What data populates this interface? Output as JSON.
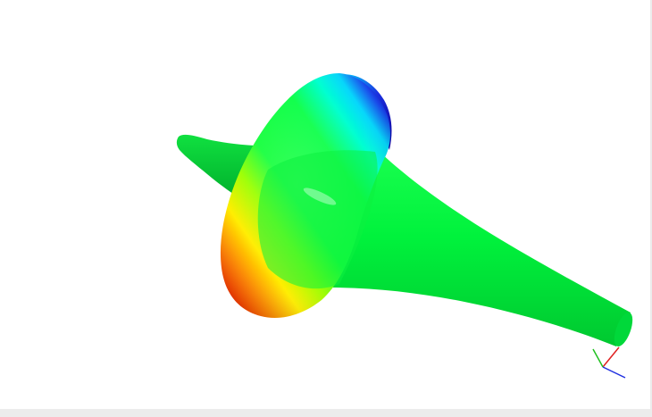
{
  "viewer": {
    "background": "#ffffff",
    "frame_color": "#ececec"
  },
  "model": {
    "shape": "flared-horn-surface",
    "colormap": [
      "#ff0000",
      "#ffff00",
      "#00ff3c",
      "#00ffff",
      "#0000c8"
    ],
    "dominant_color": "#00ec3c"
  },
  "axes_triad": {
    "x_color": "#e02020",
    "y_color": "#20c020",
    "z_color": "#2030e0"
  }
}
